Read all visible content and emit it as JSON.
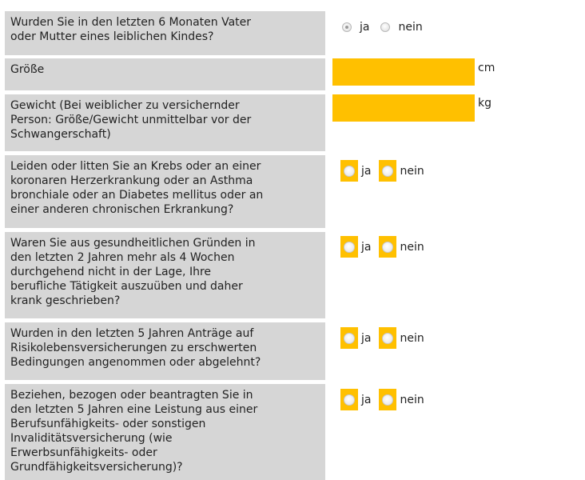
{
  "questions": [
    {
      "text": "Wurden Sie in den letzten 6 Monaten Vater\noder Mutter eines leiblichen Kindes?",
      "type": "radio-plain",
      "yes_label": "ja",
      "no_label": "nein",
      "selected": "ja"
    },
    {
      "text": "Größe",
      "type": "input",
      "value": "",
      "unit": "cm"
    },
    {
      "text": "Gewicht (Bei weiblicher zu versichernder\nPerson: Größe/Gewicht unmittelbar vor der\nSchwangerschaft)",
      "type": "input",
      "value": "",
      "unit": "kg"
    },
    {
      "text": "Leiden oder litten Sie an Krebs oder an einer\nkoronaren Herzerkrankung oder an Asthma\nbronchiale oder an Diabetes mellitus oder an\neiner anderen chronischen Erkrankung?",
      "type": "radio-box",
      "yes_label": "ja",
      "no_label": "nein"
    },
    {
      "text": "Waren Sie aus gesundheitlichen Gründen in\nden letzten 2 Jahren mehr als 4 Wochen\ndurchgehend nicht in der Lage, Ihre\nberufliche Tätigkeit auszuüben und daher\nkrank geschrieben?",
      "type": "radio-box",
      "yes_label": "ja",
      "no_label": "nein"
    },
    {
      "text": "Wurden in den letzten 5 Jahren Anträge auf\nRisikolebensversicherungen zu erschwerten\nBedingungen angenommen oder abgelehnt?",
      "type": "radio-box",
      "yes_label": "ja",
      "no_label": "nein"
    },
    {
      "text": "Beziehen, bezogen oder beantragten Sie in\nden letzten 5 Jahren eine Leistung aus einer\nBerufsunfähigkeits- oder sonstigen\nInvaliditätsversicherung (wie\nErwerbsunfähigkeits- oder\nGrundfähigkeitsversicherung)?",
      "type": "radio-box",
      "yes_label": "ja",
      "no_label": "nein"
    }
  ],
  "colors": {
    "accent": "#ffc000",
    "label_background": "#d6d6d6"
  }
}
